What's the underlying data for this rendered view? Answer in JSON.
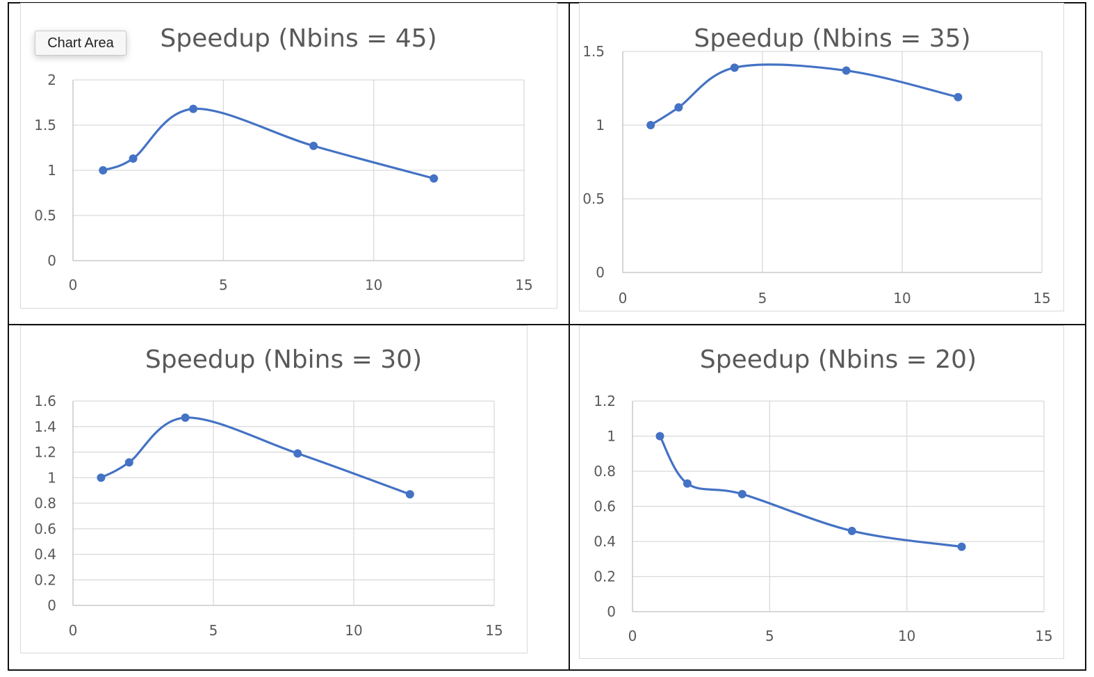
{
  "tooltip": {
    "text": "Chart Area"
  },
  "colors": {
    "series": "#4472C4",
    "grid": "#d9d9d9",
    "axis_line": "#bfbfbf",
    "text": "#595959"
  },
  "chart_data": [
    {
      "type": "line",
      "title": "Speedup (Nbins = 45)",
      "xlabel": "",
      "ylabel": "",
      "xlim": [
        0,
        15
      ],
      "ylim": [
        0,
        2
      ],
      "xticks": [
        0,
        5,
        10,
        15
      ],
      "yticks": [
        0,
        0.5,
        1,
        1.5,
        2
      ],
      "ytick_labels": [
        "0",
        "0.5",
        "1",
        "1.5",
        "2"
      ],
      "grid": true,
      "legend": "none",
      "smooth": true,
      "series": [
        {
          "x": [
            1,
            2,
            4,
            8,
            12
          ],
          "y": [
            1,
            1.13,
            1.68,
            1.27,
            0.91
          ]
        }
      ]
    },
    {
      "type": "line",
      "title": "Speedup (Nbins = 35)",
      "xlabel": "",
      "ylabel": "",
      "xlim": [
        0,
        15
      ],
      "ylim": [
        0,
        1.5
      ],
      "xticks": [
        0,
        5,
        10,
        15
      ],
      "yticks": [
        0,
        0.5,
        1,
        1.5
      ],
      "ytick_labels": [
        "0",
        "0.5",
        "1",
        "1.5"
      ],
      "grid": true,
      "legend": "none",
      "smooth": true,
      "series": [
        {
          "x": [
            1,
            2,
            4,
            8,
            12
          ],
          "y": [
            1,
            1.12,
            1.39,
            1.37,
            1.19
          ]
        }
      ]
    },
    {
      "type": "line",
      "title": "Speedup (Nbins = 30)",
      "xlabel": "",
      "ylabel": "",
      "xlim": [
        0,
        15
      ],
      "ylim": [
        0,
        1.6
      ],
      "xticks": [
        0,
        5,
        10,
        15
      ],
      "yticks": [
        0,
        0.2,
        0.4,
        0.6,
        0.8,
        1,
        1.2,
        1.4,
        1.6
      ],
      "ytick_labels": [
        "0",
        "0.2",
        "0.4",
        "0.6",
        "0.8",
        "1",
        "1.2",
        "1.4",
        "1.6"
      ],
      "grid": true,
      "legend": "none",
      "smooth": true,
      "series": [
        {
          "x": [
            1,
            2,
            4,
            8,
            12
          ],
          "y": [
            1,
            1.12,
            1.47,
            1.19,
            0.87
          ]
        }
      ]
    },
    {
      "type": "line",
      "title": "Speedup (Nbins = 20)",
      "xlabel": "",
      "ylabel": "",
      "xlim": [
        0,
        15
      ],
      "ylim": [
        0,
        1.2
      ],
      "xticks": [
        0,
        5,
        10,
        15
      ],
      "yticks": [
        0,
        0.2,
        0.4,
        0.6,
        0.8,
        1,
        1.2
      ],
      "ytick_labels": [
        "0",
        "0.2",
        "0.4",
        "0.6",
        "0.8",
        "1",
        "1.2"
      ],
      "grid": true,
      "legend": "none",
      "smooth": true,
      "series": [
        {
          "x": [
            1,
            2,
            4,
            8,
            12
          ],
          "y": [
            1,
            0.73,
            0.67,
            0.46,
            0.37
          ]
        }
      ]
    }
  ]
}
